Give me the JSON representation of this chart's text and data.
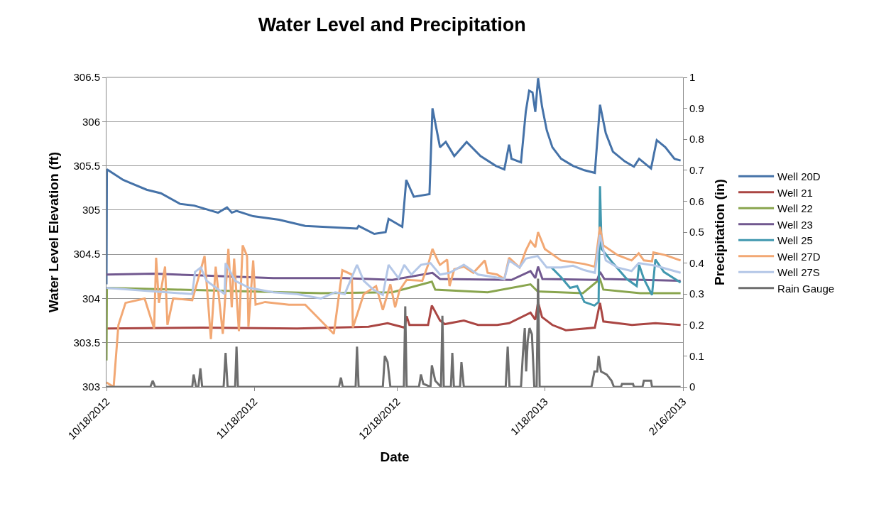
{
  "chart_data": {
    "type": "line",
    "title": "Water Level and Precipitation",
    "xlabel": "Date",
    "ylabel": "Water Level Elevation (ft)",
    "y2label": "Precipitation (in)",
    "xlim": [
      "2012-10-18",
      "2013-02-16"
    ],
    "xticks": [
      {
        "value": "2012-10-18",
        "label": "10/18/2012"
      },
      {
        "value": "2012-11-18",
        "label": "11/18/2012"
      },
      {
        "value": "2012-12-18",
        "label": "12/18/2012"
      },
      {
        "value": "2013-01-18",
        "label": "1/18/2013"
      },
      {
        "value": "2013-02-16",
        "label": "2/16/2013"
      }
    ],
    "ylim": [
      303,
      306.5
    ],
    "yticks": [
      303,
      303.5,
      304,
      304.5,
      305,
      305.5,
      306,
      306.5
    ],
    "y2lim": [
      0,
      1
    ],
    "y2ticks": [
      0,
      0.1,
      0.2,
      0.3,
      0.4,
      0.5,
      0.6,
      0.7,
      0.8,
      0.9,
      1
    ],
    "grid": "y",
    "legend": "right",
    "marker": "none",
    "line_style": "solid",
    "series": [
      {
        "name": "Well 20D",
        "color": "#4572a8",
        "x": [
          "2012-10-18T00:00",
          "2012-10-18T02:00",
          "2012-10-21T12:00",
          "2012-10-26T10:00",
          "2012-10-29T10:00",
          "2012-11-02T10:00",
          "2012-11-05T10:00",
          "2012-11-10T10:00",
          "2012-11-12T07:00",
          "2012-11-13T07:00",
          "2012-11-14T07:00",
          "2012-11-17T19:00",
          "2012-11-23T05:00",
          "2012-11-28T17:00",
          "2012-12-09T14:00",
          "2012-12-09T22:00",
          "2012-12-13T05:00",
          "2012-12-15T14:00",
          "2012-12-16T05:00",
          "2012-12-19T02:00",
          "2012-12-19T22:00",
          "2012-12-21T12:00",
          "2012-12-24T19:00",
          "2012-12-25T10:00",
          "2012-12-27T00:00",
          "2012-12-28T05:00",
          "2012-12-30T00:00",
          "2013-01-01T14:00",
          "2013-01-04T12:00",
          "2013-01-07T17:00",
          "2013-01-09T12:00",
          "2013-01-10T12:00",
          "2013-01-11T00:00",
          "2013-01-13T00:00",
          "2013-01-14T00:00",
          "2013-01-14T17:00",
          "2013-01-15T10:00",
          "2013-01-16T00:00",
          "2013-01-16T14:00",
          "2013-01-17T10:00",
          "2013-01-18T10:00",
          "2013-01-19T14:00",
          "2013-01-21T10:00",
          "2013-01-23T22:00",
          "2013-01-26T07:00",
          "2013-01-28T12:00",
          "2013-01-29T14:00",
          "2013-01-30T19:00",
          "2013-02-01T07:00",
          "2013-02-03T19:00",
          "2013-02-05T17:00",
          "2013-02-06T19:00",
          "2013-02-09T07:00",
          "2013-02-10T12:00",
          "2013-02-12T07:00",
          "2013-02-14T05:00",
          "2013-02-15T12:00"
        ],
        "values": [
          304.16,
          305.46,
          305.34,
          305.23,
          305.19,
          305.07,
          305.05,
          304.97,
          305.03,
          304.97,
          304.99,
          304.93,
          304.89,
          304.82,
          304.79,
          304.82,
          304.73,
          304.75,
          304.9,
          304.81,
          305.34,
          305.15,
          305.18,
          306.15,
          305.71,
          305.77,
          305.61,
          305.77,
          305.61,
          305.5,
          305.46,
          305.74,
          305.58,
          305.54,
          306.11,
          306.35,
          306.33,
          306.11,
          306.49,
          306.17,
          305.9,
          305.71,
          305.58,
          305.5,
          305.45,
          305.42,
          306.19,
          305.87,
          305.66,
          305.55,
          305.49,
          305.58,
          305.47,
          305.79,
          305.71,
          305.58,
          305.56
        ]
      },
      {
        "name": "Well 21",
        "color": "#aa4643",
        "x": [
          "2012-10-18",
          "2012-11-07",
          "2012-11-27",
          "2012-12-12",
          "2012-12-16",
          "2012-12-19T14:00",
          "2012-12-20T00:00",
          "2012-12-20T14:00",
          "2012-12-24T12:00",
          "2012-12-25T07:00",
          "2012-12-27",
          "2012-12-28",
          "2013-01-01",
          "2013-01-04",
          "2013-01-08",
          "2013-01-10T12:00",
          "2013-01-15",
          "2013-01-16",
          "2013-01-16T14:00",
          "2013-01-17T10:00",
          "2013-01-19T14:00",
          "2013-01-22T10:00",
          "2013-01-28T12:00",
          "2013-01-29T14:00",
          "2013-01-30T07:00",
          "2013-02-05T07:00",
          "2013-02-10T05:00",
          "2013-02-15T12:00"
        ],
        "values": [
          303.66,
          303.67,
          303.66,
          303.68,
          303.72,
          303.67,
          303.8,
          303.7,
          303.7,
          303.92,
          303.75,
          303.71,
          303.75,
          303.7,
          303.7,
          303.72,
          303.84,
          303.76,
          303.96,
          303.79,
          303.7,
          303.64,
          303.67,
          303.95,
          303.74,
          303.7,
          303.72,
          303.7
        ]
      },
      {
        "name": "Well 22",
        "color": "#89a54e",
        "x": [
          "2012-10-18T00:00",
          "2012-10-18T02:00",
          "2012-11-02",
          "2012-11-17",
          "2012-12-02",
          "2012-12-17",
          "2012-12-25T07:00",
          "2012-12-26",
          "2013-01-06",
          "2013-01-15",
          "2013-01-16T12:00",
          "2013-01-26",
          "2013-01-29T14:00",
          "2013-01-30T07:00",
          "2013-02-07",
          "2013-02-15T12:00"
        ],
        "values": [
          303.3,
          304.12,
          304.1,
          304.08,
          304.06,
          304.07,
          304.19,
          304.1,
          304.07,
          304.16,
          304.08,
          304.06,
          304.22,
          304.1,
          304.06,
          304.06
        ]
      },
      {
        "name": "Well 23",
        "color": "#71588f",
        "x": [
          "2012-10-18",
          "2012-10-28",
          "2012-11-07",
          "2012-11-22",
          "2012-12-07",
          "2012-12-17",
          "2012-12-25T10:00",
          "2012-12-27",
          "2013-01-11",
          "2013-01-15",
          "2013-01-16",
          "2013-01-16T14:00",
          "2013-01-17T12:00",
          "2013-01-29T00:00",
          "2013-01-29T14:00",
          "2013-01-30T12:00",
          "2013-02-15T12:00"
        ],
        "values": [
          304.27,
          304.28,
          304.26,
          304.23,
          304.23,
          304.21,
          304.29,
          304.22,
          304.21,
          304.31,
          304.23,
          304.36,
          304.22,
          304.21,
          304.3,
          304.22,
          304.2
        ]
      },
      {
        "name": "Well 25",
        "color": "#4198af",
        "x": [
          "2013-01-19T10:00",
          "2013-01-21T10:00",
          "2013-01-23T07:00",
          "2013-01-24T19:00",
          "2013-01-26T07:00",
          "2013-01-28T10:00",
          "2013-01-29T07:00",
          "2013-01-29T14:00",
          "2013-01-29T22:00",
          "2013-02-01T07:00",
          "2013-02-04T05:00",
          "2013-02-06T07:00",
          "2013-02-06T19:00",
          "2013-02-07T19:00",
          "2013-02-09T12:00",
          "2013-02-10T05:00",
          "2013-02-12T00:00",
          "2013-02-15T12:00"
        ],
        "values": [
          304.35,
          304.24,
          304.12,
          304.14,
          303.96,
          303.92,
          303.96,
          305.27,
          304.56,
          304.4,
          304.22,
          304.14,
          304.38,
          304.22,
          304.04,
          304.44,
          304.3,
          304.18
        ]
      },
      {
        "name": "Well 27D",
        "color": "#f2a874",
        "x": [
          "2012-10-18T00:00",
          "2012-10-19T12:00",
          "2012-10-20T12:00",
          "2012-10-22T00:00",
          "2012-10-26T00:00",
          "2012-10-28T00:00",
          "2012-10-28T10:00",
          "2012-10-29T00:00",
          "2012-10-30T07:00",
          "2012-10-30T19:00",
          "2012-11-01T00:00",
          "2012-11-05T00:00",
          "2012-11-07T14:00",
          "2012-11-08T22:00",
          "2012-11-09T22:00",
          "2012-11-11T10:00",
          "2012-11-12T14:00",
          "2012-11-13T07:00",
          "2012-11-13T19:00",
          "2012-11-14T19:00",
          "2012-11-15T14:00",
          "2012-11-16T12:00",
          "2012-11-16T19:00",
          "2012-11-17T19:00",
          "2012-11-18T07:00",
          "2012-11-20T07:00",
          "2012-11-25T07:00",
          "2012-11-28T17:00",
          "2012-12-04T17:00",
          "2012-12-06T12:00",
          "2012-12-08T12:00",
          "2012-12-08T17:00",
          "2012-12-11T00:00",
          "2012-12-13T14:00",
          "2012-12-15T00:00",
          "2012-12-16T14:00",
          "2012-12-17T14:00",
          "2012-12-18T12:00",
          "2012-12-20T00:00",
          "2012-12-23T07:00",
          "2012-12-24T12:00",
          "2012-12-25T10:00",
          "2012-12-26T14:00",
          "2012-12-27T00:00",
          "2012-12-28T12:00",
          "2012-12-29T00:00",
          "2012-12-30T00:00",
          "2013-01-01T00:00",
          "2013-01-03T00:00",
          "2013-01-05T10:00",
          "2013-01-06T00:00",
          "2013-01-08T00:00",
          "2013-01-09T12:00",
          "2013-01-10T12:00",
          "2013-01-12T17:00",
          "2013-01-14T00:00",
          "2013-01-15T00:00",
          "2013-01-16T00:00",
          "2013-01-16T14:00",
          "2013-01-18T00:00",
          "2013-01-21T10:00",
          "2013-01-26T07:00",
          "2013-01-28T12:00",
          "2013-01-29T14:00",
          "2013-01-30T07:00",
          "2013-02-02T07:00",
          "2013-02-05T05:00",
          "2013-02-06T17:00",
          "2013-02-07T19:00",
          "2013-02-09T12:00",
          "2013-02-09T19:00",
          "2013-02-12T07:00",
          "2013-02-15T12:00"
        ],
        "values": [
          303.05,
          303.0,
          303.7,
          303.95,
          304.0,
          303.66,
          304.46,
          303.95,
          304.36,
          303.7,
          304.0,
          303.98,
          304.48,
          303.54,
          304.36,
          303.6,
          304.56,
          303.9,
          304.45,
          303.63,
          304.6,
          304.48,
          303.68,
          304.43,
          303.93,
          303.96,
          303.93,
          303.93,
          303.6,
          304.32,
          304.27,
          303.67,
          304.05,
          304.14,
          303.87,
          304.16,
          303.9,
          304.09,
          304.21,
          304.2,
          304.38,
          304.56,
          304.42,
          304.38,
          304.44,
          304.14,
          304.33,
          304.36,
          304.29,
          304.43,
          304.29,
          304.27,
          304.22,
          304.46,
          304.35,
          304.54,
          304.65,
          304.58,
          304.75,
          304.56,
          304.43,
          304.39,
          304.36,
          304.81,
          304.6,
          304.49,
          304.43,
          304.51,
          304.43,
          304.42,
          304.52,
          304.49,
          304.43
        ]
      },
      {
        "name": "Well 27S",
        "color": "#b4c7e7",
        "x": [
          "2012-10-18",
          "2012-10-28",
          "2012-11-05T00:00",
          "2012-11-05T14:00",
          "2012-11-06T19:00",
          "2012-11-08T00:00",
          "2012-11-11T19:00",
          "2012-11-12T00:00",
          "2012-11-14",
          "2012-11-17",
          "2012-11-22",
          "2012-11-27",
          "2012-12-02",
          "2012-12-05",
          "2012-12-07",
          "2012-12-09T14:00",
          "2012-12-11",
          "2012-12-13",
          "2012-12-15",
          "2012-12-16T05:00",
          "2012-12-18T07:00",
          "2012-12-19T12:00",
          "2012-12-21",
          "2012-12-23",
          "2012-12-25",
          "2012-12-27",
          "2012-12-29",
          "2013-01-01",
          "2013-01-04",
          "2013-01-07T12:00",
          "2013-01-09T12:00",
          "2013-01-10T12:00",
          "2013-01-12T17:00",
          "2013-01-14",
          "2013-01-16T12:00",
          "2013-01-18T10:00",
          "2013-01-21T10:00",
          "2013-01-23T22:00",
          "2013-01-26T07:00",
          "2013-01-28T12:00",
          "2013-01-29T14:00",
          "2013-01-30T19:00",
          "2013-02-02T07:00",
          "2013-02-05T05:00",
          "2013-02-06T17:00",
          "2013-02-10T05:00",
          "2013-02-15T12:00"
        ],
        "values": [
          304.12,
          304.08,
          304.05,
          304.3,
          304.35,
          304.2,
          304.05,
          304.4,
          304.2,
          304.12,
          304.07,
          304.05,
          304.0,
          304.07,
          304.05,
          304.38,
          304.2,
          304.1,
          304.04,
          304.38,
          304.23,
          304.38,
          304.27,
          304.38,
          304.4,
          304.27,
          304.29,
          304.38,
          304.27,
          304.24,
          304.22,
          304.43,
          304.35,
          304.45,
          304.48,
          304.35,
          304.35,
          304.37,
          304.32,
          304.29,
          304.72,
          304.43,
          304.35,
          304.31,
          304.4,
          304.37,
          304.29
        ]
      },
      {
        "name": "Rain Gauge",
        "color": "#6e6e6e",
        "axis": "y2",
        "x": [
          "2012-10-18T00:00",
          "2012-10-27T05:00",
          "2012-10-27T17:00",
          "2012-10-28T05:00",
          "2012-11-05T00:00",
          "2012-11-05T07:00",
          "2012-11-05T19:00",
          "2012-11-06T07:00",
          "2012-11-06T17:00",
          "2012-11-07T02:00",
          "2012-11-11T14:00",
          "2012-11-12T00:00",
          "2012-11-12T10:00",
          "2012-11-14T00:00",
          "2012-11-14T07:00",
          "2012-11-14T14:00",
          "2012-12-05T19:00",
          "2012-12-06T05:00",
          "2012-12-06T14:00",
          "2012-12-09T07:00",
          "2012-12-09T14:00",
          "2012-12-09T22:00",
          "2012-12-15T00:00",
          "2012-12-15T10:00",
          "2012-12-16T00:00",
          "2012-12-16T14:00",
          "2012-12-19T10:00",
          "2012-12-19T17:00",
          "2012-12-20T00:00",
          "2012-12-22T14:00",
          "2012-12-23T00:00",
          "2012-12-23T12:00",
          "2012-12-25T00:00",
          "2012-12-25T07:00",
          "2012-12-26T00:00",
          "2012-12-27T05:00",
          "2012-12-27T12:00",
          "2012-12-27T19:00",
          "2012-12-29T07:00",
          "2012-12-29T14:00",
          "2012-12-29T22:00",
          "2012-12-31T05:00",
          "2012-12-31T12:00",
          "2013-01-01T00:00",
          "2013-01-09T19:00",
          "2013-01-10T05:00",
          "2013-01-10T14:00",
          "2013-01-13T00:00",
          "2013-01-13T10:00",
          "2013-01-13T19:00",
          "2013-01-14T02:00",
          "2013-01-14T10:00",
          "2013-01-14T19:00",
          "2013-01-15T07:00",
          "2013-01-15T19:00",
          "2013-01-16T07:00",
          "2013-01-16T14:00",
          "2013-01-16T22:00",
          "2013-01-27T19:00",
          "2013-01-28T10:00",
          "2013-01-29T00:00",
          "2013-01-29T07:00",
          "2013-01-29T19:00",
          "2013-01-31T00:00",
          "2013-02-01T00:00",
          "2013-02-01T12:00",
          "2013-02-03T00:00",
          "2013-02-03T05:00",
          "2013-02-05T12:00",
          "2013-02-05T17:00",
          "2013-02-07T12:00",
          "2013-02-07T19:00",
          "2013-02-09T07:00",
          "2013-02-09T12:00",
          "2013-02-15T12:00"
        ],
        "values": [
          0,
          0,
          0.02,
          0,
          0,
          0.04,
          0,
          0,
          0.06,
          0,
          0,
          0.11,
          0,
          0,
          0.13,
          0,
          0,
          0.03,
          0,
          0,
          0.13,
          0,
          0,
          0.1,
          0.08,
          0,
          0,
          0.26,
          0,
          0,
          0.04,
          0.01,
          0,
          0.07,
          0.02,
          0,
          0.23,
          0,
          0,
          0.11,
          0,
          0,
          0.08,
          0,
          0,
          0.13,
          0,
          0,
          0.11,
          0.19,
          0.05,
          0.15,
          0.19,
          0.17,
          0,
          0,
          0.35,
          0,
          0,
          0.05,
          0.05,
          0.1,
          0.05,
          0.04,
          0.02,
          0,
          0,
          0.01,
          0.01,
          0,
          0,
          0.02,
          0.02,
          0,
          0
        ]
      }
    ]
  }
}
